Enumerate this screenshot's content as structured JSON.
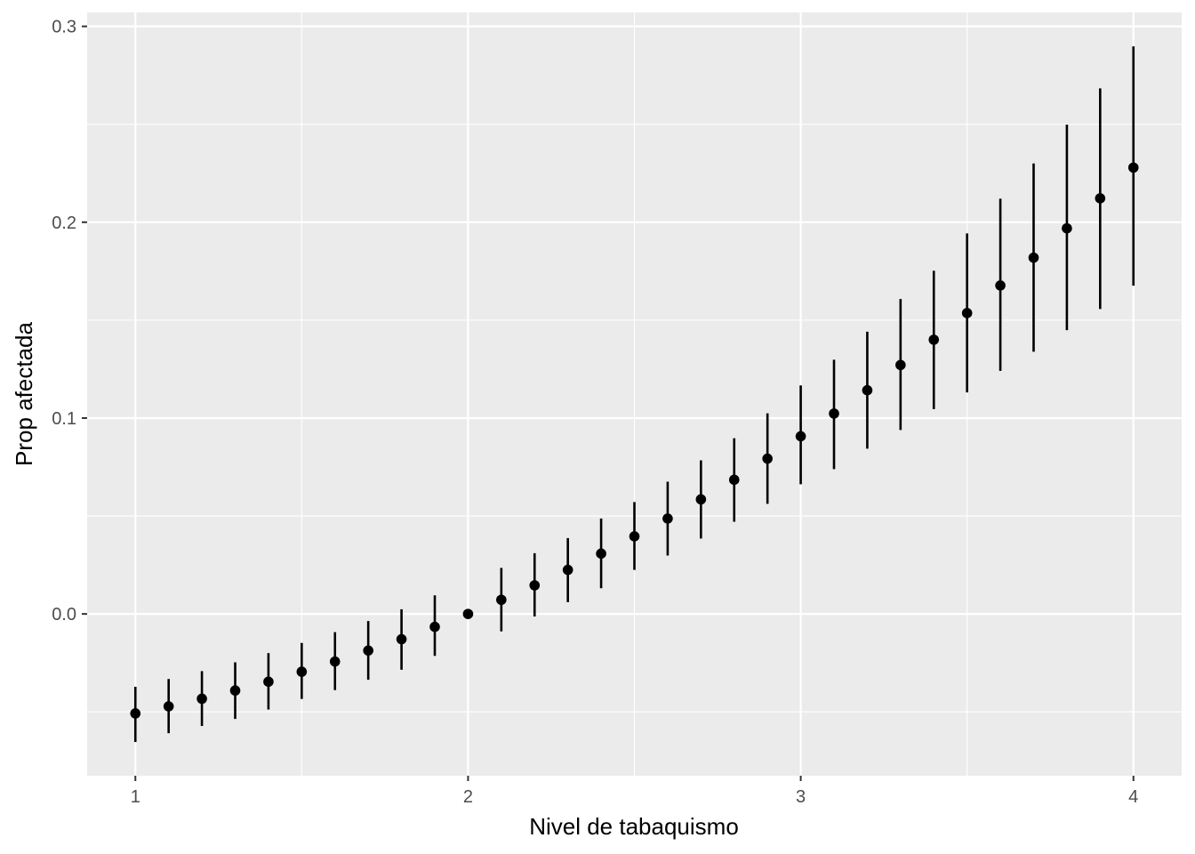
{
  "chart_data": {
    "type": "scatter",
    "subtype": "pointrange",
    "title": "",
    "xlabel": "Nivel de tabaquismo",
    "ylabel": "Prop afectada",
    "xlim": [
      0.855,
      4.145
    ],
    "ylim": [
      -0.0826,
      0.3071
    ],
    "x_ticks": [
      1,
      2,
      3,
      4
    ],
    "x_tick_labels": [
      "1",
      "2",
      "3",
      "4"
    ],
    "y_ticks": [
      0.0,
      0.1,
      0.2,
      0.3
    ],
    "y_tick_labels": [
      "0.0",
      "0.1",
      "0.2",
      "0.3"
    ],
    "x_minor_ticks": [
      1.5,
      2.5,
      3.5
    ],
    "y_minor_ticks": [
      -0.05,
      0.05,
      0.15,
      0.25
    ],
    "grid": true,
    "legend": "none",
    "colors": {
      "panel_background": "#ebebeb",
      "grid_major": "#ffffff",
      "grid_minor": "#ffffff",
      "points": "#000000",
      "tick_text": "#4d4d4d",
      "tick_marks": "#333333"
    },
    "series": [
      {
        "x": [
          1.0,
          1.1,
          1.2,
          1.3,
          1.4,
          1.5,
          1.6,
          1.7,
          1.8,
          1.9,
          2.0,
          2.1,
          2.2,
          2.3,
          2.4,
          2.5,
          2.6,
          2.7,
          2.8,
          2.9,
          3.0,
          3.1,
          3.2,
          3.3,
          3.4,
          3.5,
          3.6,
          3.7,
          3.8,
          3.9,
          4.0
        ],
        "y": [
          -0.0508,
          -0.0472,
          -0.0433,
          -0.0391,
          -0.0346,
          -0.0295,
          -0.0243,
          -0.0187,
          -0.0129,
          -0.0066,
          0.0,
          0.0072,
          0.0146,
          0.0225,
          0.0308,
          0.0396,
          0.0487,
          0.0585,
          0.0685,
          0.0793,
          0.0907,
          0.1023,
          0.1142,
          0.1271,
          0.14,
          0.1536,
          0.1677,
          0.1819,
          0.1969,
          0.2122,
          0.2279
        ],
        "lower": [
          -0.0654,
          -0.0609,
          -0.0572,
          -0.0536,
          -0.0488,
          -0.0434,
          -0.0389,
          -0.0336,
          -0.0285,
          -0.0214,
          0.0,
          -0.0089,
          -0.0013,
          0.006,
          0.0131,
          0.0225,
          0.0298,
          0.0385,
          0.0471,
          0.0562,
          0.0662,
          0.0739,
          0.0844,
          0.0939,
          0.1046,
          0.1131,
          0.1241,
          0.1339,
          0.1449,
          0.1557,
          0.1676
        ],
        "upper": [
          -0.0372,
          -0.0332,
          -0.0292,
          -0.0247,
          -0.02,
          -0.0148,
          -0.0093,
          -0.0036,
          0.0024,
          0.0095,
          0.0,
          0.0235,
          0.031,
          0.0387,
          0.0487,
          0.0571,
          0.0675,
          0.0784,
          0.0897,
          0.1024,
          0.1167,
          0.1298,
          0.1441,
          0.1608,
          0.1752,
          0.1943,
          0.212,
          0.23,
          0.2498,
          0.2683,
          0.2898
        ]
      }
    ]
  }
}
